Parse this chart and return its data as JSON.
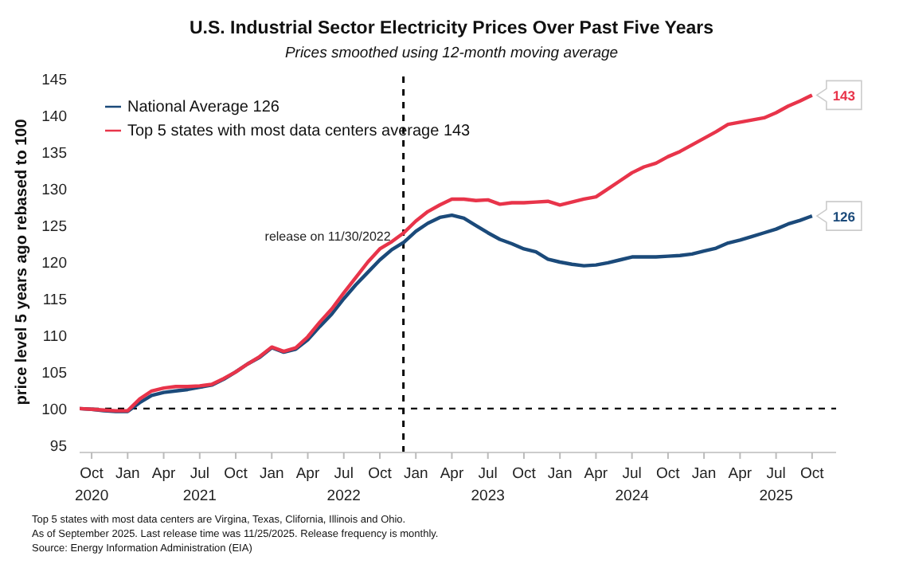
{
  "chart_data": {
    "type": "line",
    "title": "U.S. Industrial Sector Electricity Prices Over Past Five Years",
    "subtitle": "Prices smoothed using 12-month moving average",
    "ylabel": "price level 5 years ago rebased to 100",
    "x": [
      "2020-09",
      "2020-10",
      "2020-11",
      "2020-12",
      "2021-01",
      "2021-02",
      "2021-03",
      "2021-04",
      "2021-05",
      "2021-06",
      "2021-07",
      "2021-08",
      "2021-09",
      "2021-10",
      "2021-11",
      "2021-12",
      "2022-01",
      "2022-02",
      "2022-03",
      "2022-04",
      "2022-05",
      "2022-06",
      "2022-07",
      "2022-08",
      "2022-09",
      "2022-10",
      "2022-11",
      "2022-12",
      "2023-01",
      "2023-02",
      "2023-03",
      "2023-04",
      "2023-05",
      "2023-06",
      "2023-07",
      "2023-08",
      "2023-09",
      "2023-10",
      "2023-11",
      "2023-12",
      "2024-01",
      "2024-02",
      "2024-03",
      "2024-04",
      "2024-05",
      "2024-06",
      "2024-07",
      "2024-08",
      "2024-09",
      "2024-10",
      "2024-11",
      "2024-12",
      "2025-01",
      "2025-02",
      "2025-03",
      "2025-04",
      "2025-05",
      "2025-06",
      "2025-07",
      "2025-08",
      "2025-09",
      "2025-10"
    ],
    "series": [
      {
        "name": "National Average 126",
        "color": "#1b4a7a",
        "values": [
          100.0,
          99.9,
          99.7,
          99.6,
          99.6,
          100.8,
          101.8,
          102.2,
          102.4,
          102.6,
          102.9,
          103.2,
          104.0,
          105.0,
          106.1,
          107.0,
          108.3,
          107.7,
          108.1,
          109.4,
          111.2,
          112.9,
          115.0,
          116.9,
          118.6,
          120.3,
          121.7,
          122.7,
          124.2,
          125.3,
          126.1,
          126.4,
          126.0,
          125.0,
          124.0,
          123.1,
          122.5,
          121.8,
          121.4,
          120.4,
          120.0,
          119.7,
          119.5,
          119.6,
          119.9,
          120.3,
          120.7,
          120.7,
          120.7,
          120.8,
          120.9,
          121.1,
          121.5,
          121.9,
          122.6,
          123.0,
          123.5,
          124.0,
          124.5,
          125.2,
          125.7,
          126.3
        ],
        "value_labels": [
          null,
          null,
          null,
          null,
          null,
          null,
          null,
          null,
          null,
          null,
          null,
          null,
          null,
          null,
          null,
          null,
          null,
          null,
          null,
          null,
          null,
          null,
          null,
          null,
          null,
          null,
          null,
          null,
          null,
          null,
          null,
          null,
          null,
          null,
          null,
          null,
          null,
          null,
          null,
          null,
          null,
          null,
          null,
          null,
          null,
          null,
          null,
          null,
          null,
          null,
          null,
          null,
          null,
          null,
          null,
          null,
          null,
          null,
          null,
          null,
          null,
          "126"
        ]
      },
      {
        "name": "Top 5 states with most data centers average 143",
        "color": "#e8344a",
        "values": [
          100.0,
          99.9,
          99.8,
          99.7,
          99.7,
          101.3,
          102.4,
          102.8,
          103.0,
          103.0,
          103.1,
          103.3,
          104.1,
          105.0,
          106.1,
          107.1,
          108.4,
          107.8,
          108.3,
          109.8,
          111.8,
          113.6,
          115.8,
          117.9,
          120.0,
          121.8,
          122.8,
          124.0,
          125.6,
          126.9,
          127.8,
          128.6,
          128.6,
          128.4,
          128.5,
          127.9,
          128.1,
          128.1,
          128.2,
          128.3,
          127.8,
          128.2,
          128.6,
          128.9,
          130.0,
          131.1,
          132.2,
          133.0,
          133.5,
          134.4,
          135.1,
          136.0,
          136.9,
          137.8,
          138.8,
          139.1,
          139.4,
          139.7,
          140.4,
          141.3,
          142.0,
          142.8
        ],
        "value_labels": [
          null,
          null,
          null,
          null,
          null,
          null,
          null,
          null,
          null,
          null,
          null,
          null,
          null,
          null,
          null,
          null,
          null,
          null,
          null,
          null,
          null,
          null,
          null,
          null,
          null,
          null,
          null,
          null,
          null,
          null,
          null,
          null,
          null,
          null,
          null,
          null,
          null,
          null,
          null,
          null,
          null,
          null,
          null,
          null,
          null,
          null,
          null,
          null,
          null,
          null,
          null,
          null,
          null,
          null,
          null,
          null,
          null,
          null,
          null,
          null,
          null,
          "143"
        ]
      }
    ],
    "xlim": [
      "2020-09",
      "2025-12"
    ],
    "xticks": [
      {
        "value": "2020-10",
        "label": "Oct\n2020"
      },
      {
        "value": "2021-01",
        "label": "Jan"
      },
      {
        "value": "2021-04",
        "label": "Apr"
      },
      {
        "value": "2021-07",
        "label": "Jul\n2021"
      },
      {
        "value": "2021-10",
        "label": "Oct"
      },
      {
        "value": "2022-01",
        "label": "Jan"
      },
      {
        "value": "2022-04",
        "label": "Apr"
      },
      {
        "value": "2022-07",
        "label": "Jul\n2022"
      },
      {
        "value": "2022-10",
        "label": "Oct"
      },
      {
        "value": "2023-01",
        "label": "Jan"
      },
      {
        "value": "2023-04",
        "label": "Apr"
      },
      {
        "value": "2023-07",
        "label": "Jul\n2023"
      },
      {
        "value": "2023-10",
        "label": "Oct"
      },
      {
        "value": "2024-01",
        "label": "Jan"
      },
      {
        "value": "2024-04",
        "label": "Apr"
      },
      {
        "value": "2024-07",
        "label": "Jul\n2024"
      },
      {
        "value": "2024-10",
        "label": "Oct"
      },
      {
        "value": "2025-01",
        "label": "Jan"
      },
      {
        "value": "2025-04",
        "label": "Apr"
      },
      {
        "value": "2025-07",
        "label": "Jul\n2025"
      },
      {
        "value": "2025-10",
        "label": "Oct"
      }
    ],
    "ylim": [
      94,
      146
    ],
    "yticks": [
      95,
      100,
      105,
      110,
      115,
      120,
      125,
      130,
      135,
      140,
      145
    ],
    "ref_lines": [
      {
        "axis": "y",
        "value": 100,
        "label": null,
        "color": "#000000",
        "line_style": "dashed"
      },
      {
        "axis": "x",
        "value": "2022-11-30",
        "label": "release on 11/30/2022",
        "color": "#000000",
        "line_style": "dashed"
      }
    ],
    "annotations": [
      "Top 5 states with most data centers are Virgina, Texas, Clifornia, Illinois and Ohio.",
      "As of September 2025. Last release time was 11/25/2025. Release frequency is monthly.",
      "Source: Energy Information Administration (EIA)"
    ],
    "legend": "top left",
    "grid": false,
    "marker": "none",
    "line_style": "solid"
  }
}
